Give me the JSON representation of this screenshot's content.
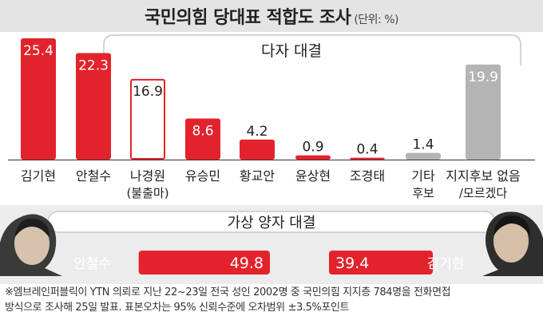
{
  "title": "국민의힘 당대표 적합도 조사",
  "unit": "(단위: %)",
  "chart_data": [
    {
      "type": "bar",
      "title": "다자 대결",
      "categories": [
        "김기현",
        "안철수",
        "나경원",
        "유승민",
        "황교안",
        "윤상현",
        "조경태",
        "기타 후보",
        "지지후보 없음/모르겠다"
      ],
      "category_lines": [
        [
          "김기현"
        ],
        [
          "안철수"
        ],
        [
          "나경원",
          "(불출마)"
        ],
        [
          "유승민"
        ],
        [
          "황교안"
        ],
        [
          "윤상현"
        ],
        [
          "조경태"
        ],
        [
          "기타",
          "후보"
        ],
        [
          "지지후보 없음",
          "/모르겠다"
        ]
      ],
      "values": [
        25.4,
        22.3,
        16.9,
        8.6,
        4.2,
        0.9,
        0.4,
        1.4,
        19.9
      ],
      "value_labels": [
        "25.4",
        "22.3",
        "16.9",
        "8.6",
        "4.2",
        "0.9",
        "0.4",
        "1.4",
        "19.9"
      ],
      "bar_styles": [
        "filled",
        "filled",
        "outline",
        "filled",
        "filled",
        "filled",
        "filled",
        "gray",
        "gray"
      ]
    },
    {
      "type": "bar",
      "title": "가상 양자 대결",
      "categories": [
        "안철수",
        "김기현"
      ],
      "values": [
        49.8,
        39.4
      ],
      "value_labels": [
        "49.8",
        "39.4"
      ]
    }
  ],
  "colors": {
    "accent": "#e3232c",
    "gray": "#b4b4b4",
    "text": "#222222",
    "white": "#ffffff"
  },
  "footnote_lines": [
    "※엠브레인퍼블릭이 YTN 의뢰로 지난 22~23일 전국 성인 2002명 중 국민의힘 지지층 784명을 전화면접",
    "방식으로 조사해 25일 발표. 표본오차는 95% 신뢰수준에 오차범위 ±3.5%포인트"
  ],
  "photos": [
    "안철수",
    "김기현"
  ]
}
